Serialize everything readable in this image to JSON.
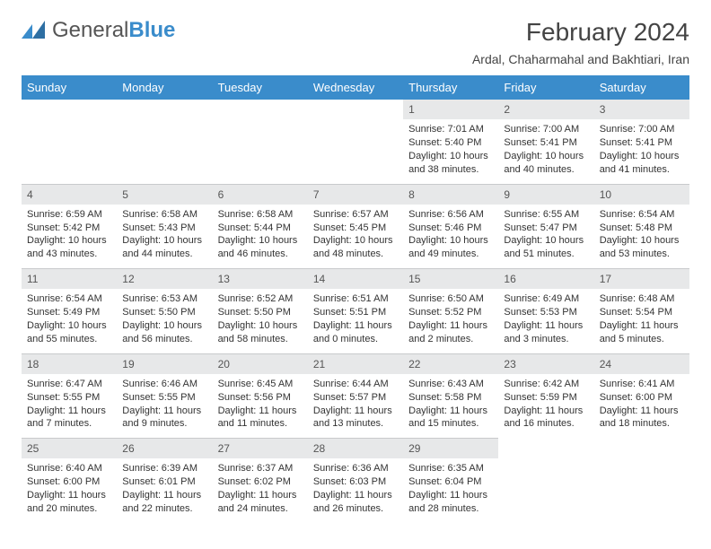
{
  "logo": {
    "word1": "General",
    "word2": "Blue"
  },
  "title": {
    "month": "February 2024",
    "location": "Ardal, Chaharmahal and Bakhtiari, Iran"
  },
  "dayHeaders": [
    "Sunday",
    "Monday",
    "Tuesday",
    "Wednesday",
    "Thursday",
    "Friday",
    "Saturday"
  ],
  "colors": {
    "headerBg": "#3a8ccb",
    "headerText": "#ffffff",
    "dayNumBg": "#e7e8e9",
    "text": "#333333",
    "border": "#c8cacc",
    "background": "#ffffff"
  },
  "typography": {
    "title_fontsize": 28,
    "location_fontsize": 14,
    "header_fontsize": 13,
    "daynum_fontsize": 12,
    "body_fontsize": 11
  },
  "weeks": [
    [
      null,
      null,
      null,
      null,
      {
        "num": "1",
        "sunrise": "Sunrise: 7:01 AM",
        "sunset": "Sunset: 5:40 PM",
        "day1": "Daylight: 10 hours",
        "day2": "and 38 minutes."
      },
      {
        "num": "2",
        "sunrise": "Sunrise: 7:00 AM",
        "sunset": "Sunset: 5:41 PM",
        "day1": "Daylight: 10 hours",
        "day2": "and 40 minutes."
      },
      {
        "num": "3",
        "sunrise": "Sunrise: 7:00 AM",
        "sunset": "Sunset: 5:41 PM",
        "day1": "Daylight: 10 hours",
        "day2": "and 41 minutes."
      }
    ],
    [
      {
        "num": "4",
        "sunrise": "Sunrise: 6:59 AM",
        "sunset": "Sunset: 5:42 PM",
        "day1": "Daylight: 10 hours",
        "day2": "and 43 minutes."
      },
      {
        "num": "5",
        "sunrise": "Sunrise: 6:58 AM",
        "sunset": "Sunset: 5:43 PM",
        "day1": "Daylight: 10 hours",
        "day2": "and 44 minutes."
      },
      {
        "num": "6",
        "sunrise": "Sunrise: 6:58 AM",
        "sunset": "Sunset: 5:44 PM",
        "day1": "Daylight: 10 hours",
        "day2": "and 46 minutes."
      },
      {
        "num": "7",
        "sunrise": "Sunrise: 6:57 AM",
        "sunset": "Sunset: 5:45 PM",
        "day1": "Daylight: 10 hours",
        "day2": "and 48 minutes."
      },
      {
        "num": "8",
        "sunrise": "Sunrise: 6:56 AM",
        "sunset": "Sunset: 5:46 PM",
        "day1": "Daylight: 10 hours",
        "day2": "and 49 minutes."
      },
      {
        "num": "9",
        "sunrise": "Sunrise: 6:55 AM",
        "sunset": "Sunset: 5:47 PM",
        "day1": "Daylight: 10 hours",
        "day2": "and 51 minutes."
      },
      {
        "num": "10",
        "sunrise": "Sunrise: 6:54 AM",
        "sunset": "Sunset: 5:48 PM",
        "day1": "Daylight: 10 hours",
        "day2": "and 53 minutes."
      }
    ],
    [
      {
        "num": "11",
        "sunrise": "Sunrise: 6:54 AM",
        "sunset": "Sunset: 5:49 PM",
        "day1": "Daylight: 10 hours",
        "day2": "and 55 minutes."
      },
      {
        "num": "12",
        "sunrise": "Sunrise: 6:53 AM",
        "sunset": "Sunset: 5:50 PM",
        "day1": "Daylight: 10 hours",
        "day2": "and 56 minutes."
      },
      {
        "num": "13",
        "sunrise": "Sunrise: 6:52 AM",
        "sunset": "Sunset: 5:50 PM",
        "day1": "Daylight: 10 hours",
        "day2": "and 58 minutes."
      },
      {
        "num": "14",
        "sunrise": "Sunrise: 6:51 AM",
        "sunset": "Sunset: 5:51 PM",
        "day1": "Daylight: 11 hours",
        "day2": "and 0 minutes."
      },
      {
        "num": "15",
        "sunrise": "Sunrise: 6:50 AM",
        "sunset": "Sunset: 5:52 PM",
        "day1": "Daylight: 11 hours",
        "day2": "and 2 minutes."
      },
      {
        "num": "16",
        "sunrise": "Sunrise: 6:49 AM",
        "sunset": "Sunset: 5:53 PM",
        "day1": "Daylight: 11 hours",
        "day2": "and 3 minutes."
      },
      {
        "num": "17",
        "sunrise": "Sunrise: 6:48 AM",
        "sunset": "Sunset: 5:54 PM",
        "day1": "Daylight: 11 hours",
        "day2": "and 5 minutes."
      }
    ],
    [
      {
        "num": "18",
        "sunrise": "Sunrise: 6:47 AM",
        "sunset": "Sunset: 5:55 PM",
        "day1": "Daylight: 11 hours",
        "day2": "and 7 minutes."
      },
      {
        "num": "19",
        "sunrise": "Sunrise: 6:46 AM",
        "sunset": "Sunset: 5:55 PM",
        "day1": "Daylight: 11 hours",
        "day2": "and 9 minutes."
      },
      {
        "num": "20",
        "sunrise": "Sunrise: 6:45 AM",
        "sunset": "Sunset: 5:56 PM",
        "day1": "Daylight: 11 hours",
        "day2": "and 11 minutes."
      },
      {
        "num": "21",
        "sunrise": "Sunrise: 6:44 AM",
        "sunset": "Sunset: 5:57 PM",
        "day1": "Daylight: 11 hours",
        "day2": "and 13 minutes."
      },
      {
        "num": "22",
        "sunrise": "Sunrise: 6:43 AM",
        "sunset": "Sunset: 5:58 PM",
        "day1": "Daylight: 11 hours",
        "day2": "and 15 minutes."
      },
      {
        "num": "23",
        "sunrise": "Sunrise: 6:42 AM",
        "sunset": "Sunset: 5:59 PM",
        "day1": "Daylight: 11 hours",
        "day2": "and 16 minutes."
      },
      {
        "num": "24",
        "sunrise": "Sunrise: 6:41 AM",
        "sunset": "Sunset: 6:00 PM",
        "day1": "Daylight: 11 hours",
        "day2": "and 18 minutes."
      }
    ],
    [
      {
        "num": "25",
        "sunrise": "Sunrise: 6:40 AM",
        "sunset": "Sunset: 6:00 PM",
        "day1": "Daylight: 11 hours",
        "day2": "and 20 minutes."
      },
      {
        "num": "26",
        "sunrise": "Sunrise: 6:39 AM",
        "sunset": "Sunset: 6:01 PM",
        "day1": "Daylight: 11 hours",
        "day2": "and 22 minutes."
      },
      {
        "num": "27",
        "sunrise": "Sunrise: 6:37 AM",
        "sunset": "Sunset: 6:02 PM",
        "day1": "Daylight: 11 hours",
        "day2": "and 24 minutes."
      },
      {
        "num": "28",
        "sunrise": "Sunrise: 6:36 AM",
        "sunset": "Sunset: 6:03 PM",
        "day1": "Daylight: 11 hours",
        "day2": "and 26 minutes."
      },
      {
        "num": "29",
        "sunrise": "Sunrise: 6:35 AM",
        "sunset": "Sunset: 6:04 PM",
        "day1": "Daylight: 11 hours",
        "day2": "and 28 minutes."
      },
      null,
      null
    ]
  ]
}
